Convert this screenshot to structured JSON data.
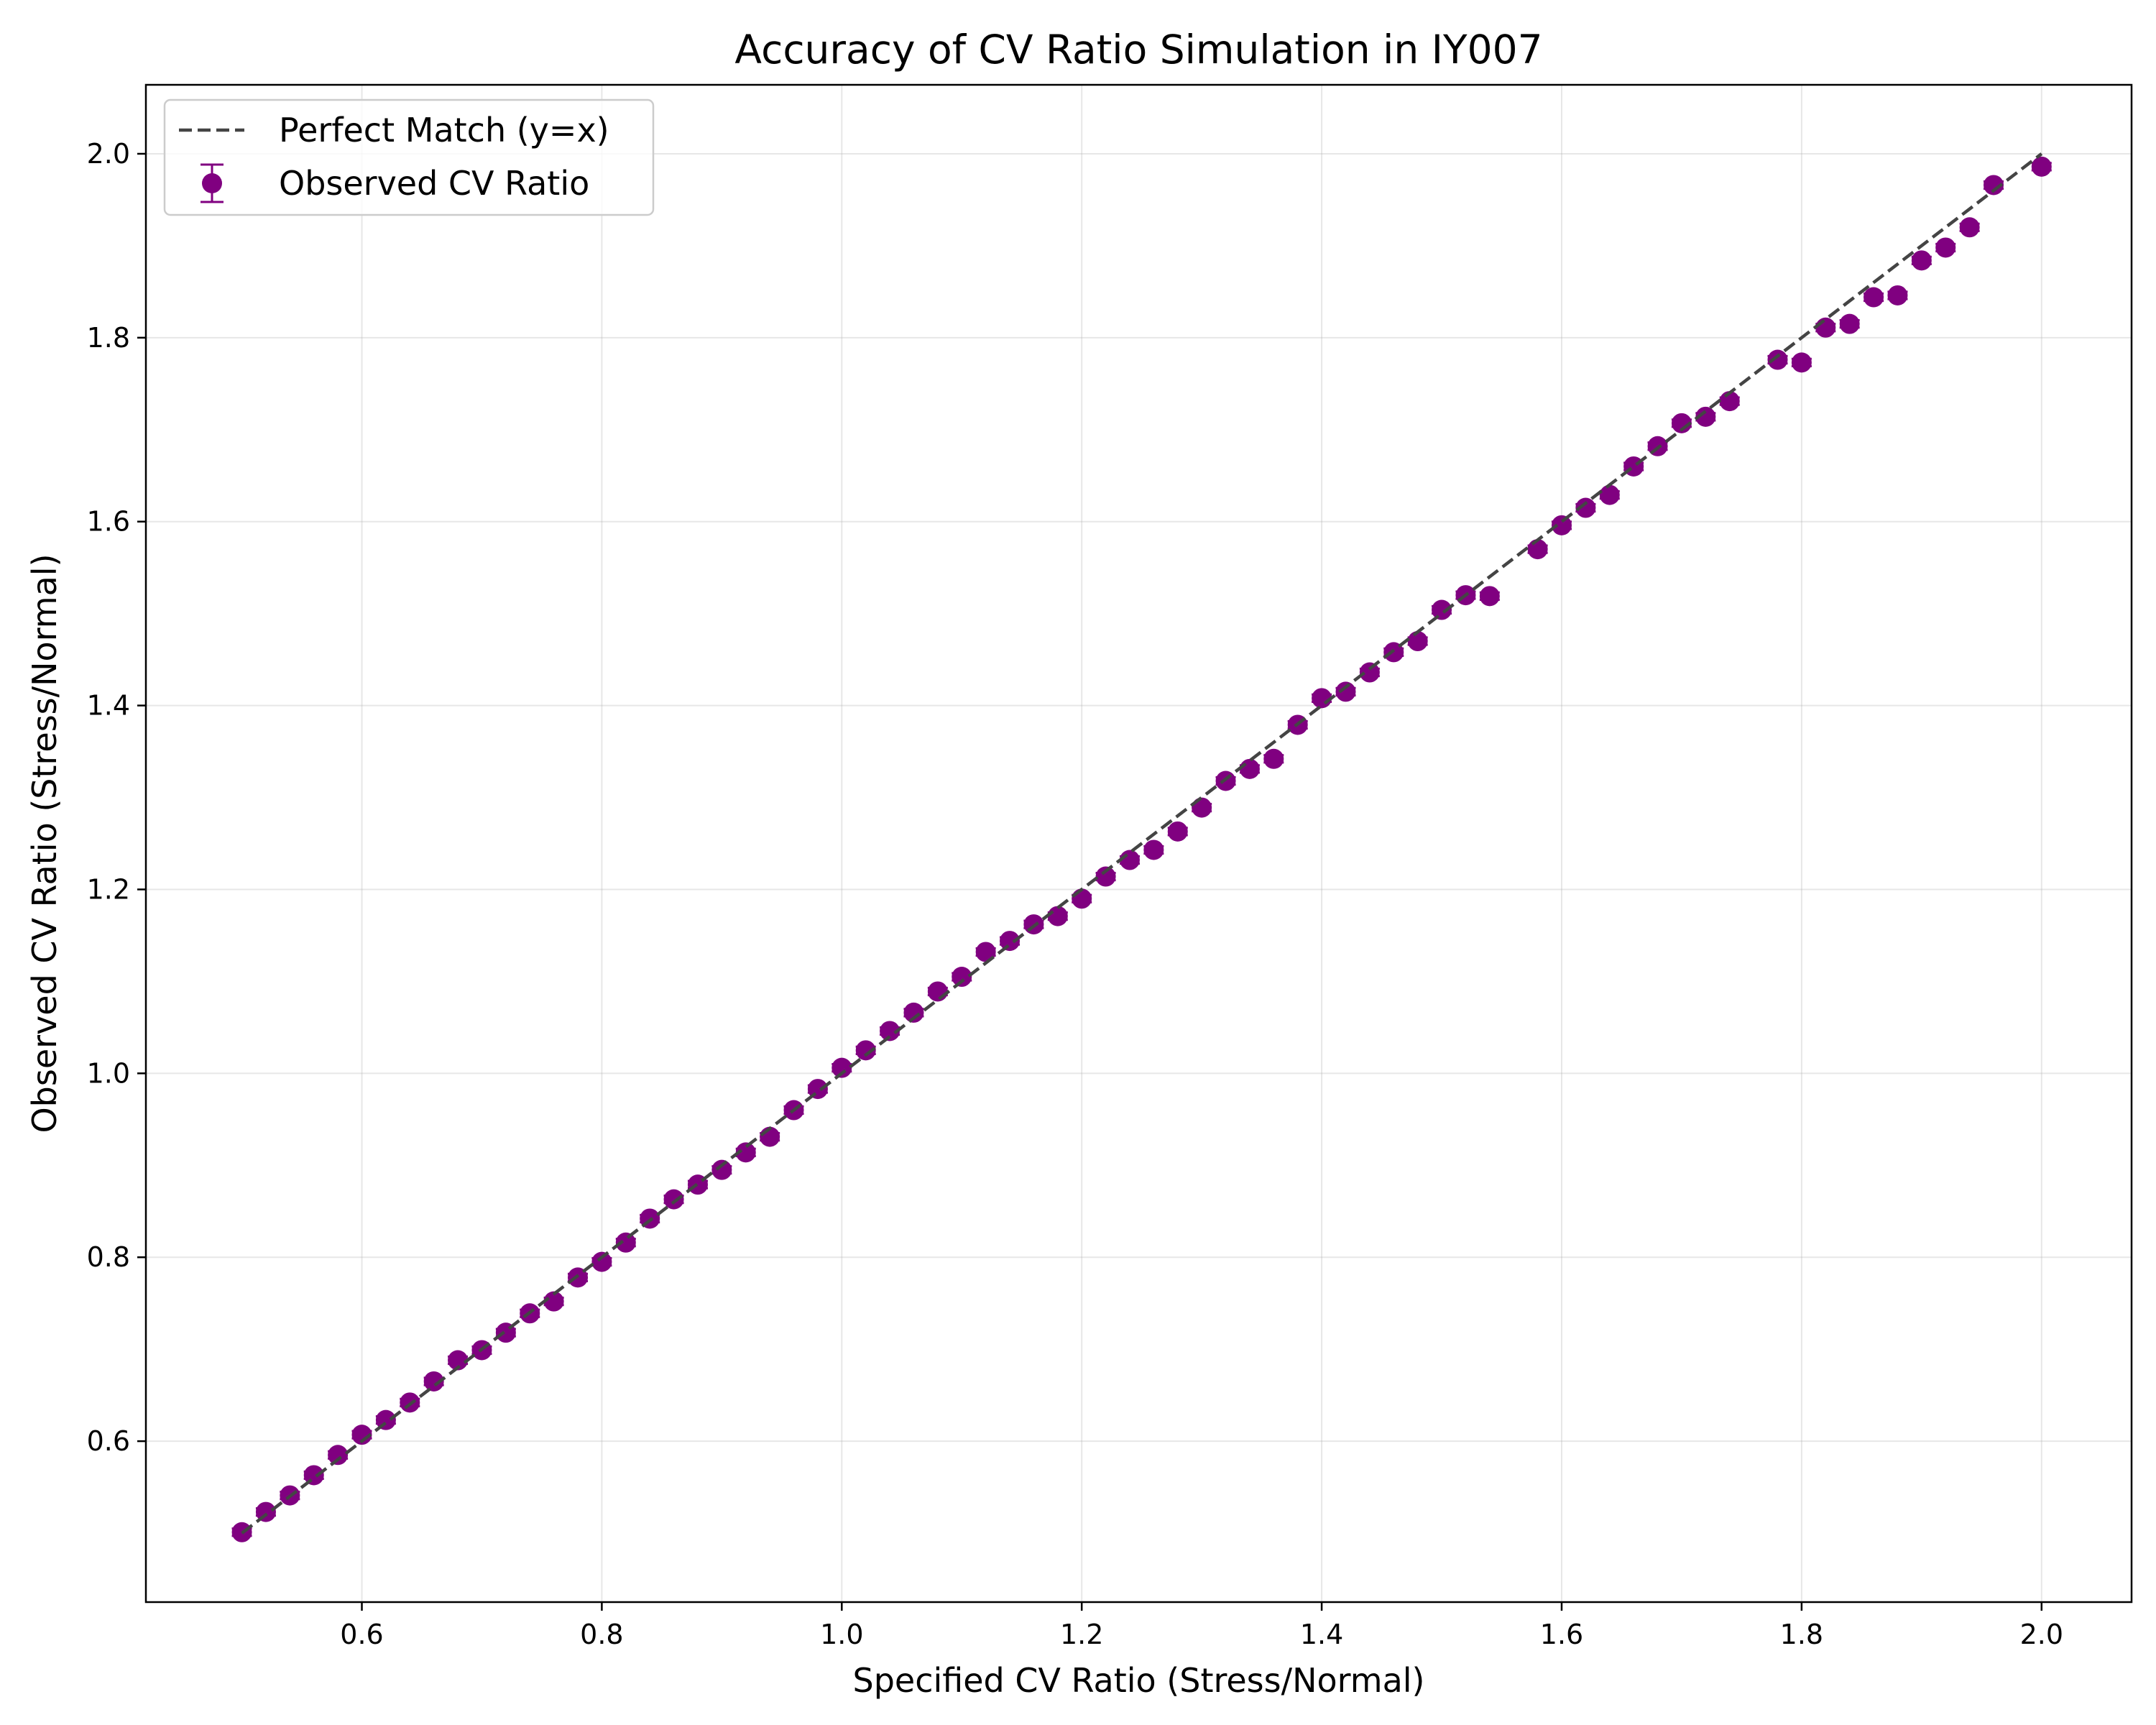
{
  "chart_data": {
    "type": "scatter",
    "title": "Accuracy of CV Ratio Simulation in IY007",
    "xlabel": "Specified CV Ratio (Stress/Normal)",
    "ylabel": "Observed CV Ratio (Stress/Normal)",
    "xlim": [
      0.42,
      2.075
    ],
    "ylim": [
      0.425,
      2.075
    ],
    "xticks": [
      "0.6",
      "0.8",
      "1.0",
      "1.2",
      "1.4",
      "1.6",
      "1.8",
      "2.0"
    ],
    "yticks": [
      "0.6",
      "0.8",
      "1.0",
      "1.2",
      "1.4",
      "1.6",
      "1.8",
      "2.0"
    ],
    "grid": true,
    "legend_position": "top-left",
    "series": [
      {
        "name": "Perfect Match (y=x)",
        "type": "line",
        "style": "dashed",
        "color": "#444444",
        "x": [
          0.5,
          2.0
        ],
        "y": [
          0.5,
          2.0
        ]
      },
      {
        "name": "Observed CV Ratio",
        "type": "errorbar",
        "color": "#800080",
        "x": [
          0.5,
          0.52,
          0.54,
          0.56,
          0.58,
          0.6,
          0.62,
          0.64,
          0.66,
          0.68,
          0.7,
          0.72,
          0.74,
          0.76,
          0.78,
          0.8,
          0.82,
          0.84,
          0.86,
          0.88,
          0.9,
          0.92,
          0.94,
          0.96,
          0.98,
          1.0,
          1.02,
          1.04,
          1.06,
          1.08,
          1.1,
          1.12,
          1.14,
          1.16,
          1.18,
          1.2,
          1.22,
          1.24,
          1.26,
          1.28,
          1.3,
          1.32,
          1.34,
          1.36,
          1.38,
          1.4,
          1.42,
          1.44,
          1.46,
          1.48,
          1.5,
          1.52,
          1.54,
          1.58,
          1.6,
          1.62,
          1.64,
          1.66,
          1.68,
          1.7,
          1.72,
          1.74,
          1.78,
          1.8,
          1.82,
          1.84,
          1.86,
          1.88,
          1.9,
          1.92,
          1.94,
          1.96,
          2.0
        ],
        "y": [
          0.501,
          0.523,
          0.541,
          0.563,
          0.585,
          0.607,
          0.623,
          0.642,
          0.665,
          0.688,
          0.699,
          0.718,
          0.739,
          0.752,
          0.778,
          0.795,
          0.816,
          0.842,
          0.863,
          0.879,
          0.895,
          0.914,
          0.931,
          0.96,
          0.983,
          1.006,
          1.025,
          1.046,
          1.066,
          1.089,
          1.105,
          1.132,
          1.144,
          1.162,
          1.171,
          1.19,
          1.214,
          1.232,
          1.243,
          1.263,
          1.289,
          1.318,
          1.331,
          1.342,
          1.379,
          1.408,
          1.415,
          1.436,
          1.458,
          1.47,
          1.504,
          1.52,
          1.519,
          1.57,
          1.596,
          1.615,
          1.629,
          1.66,
          1.682,
          1.707,
          1.714,
          1.731,
          1.776,
          1.773,
          1.811,
          1.815,
          1.844,
          1.846,
          1.884,
          1.898,
          1.92,
          1.966,
          1.986
        ],
        "yerr": 0.004
      }
    ]
  }
}
